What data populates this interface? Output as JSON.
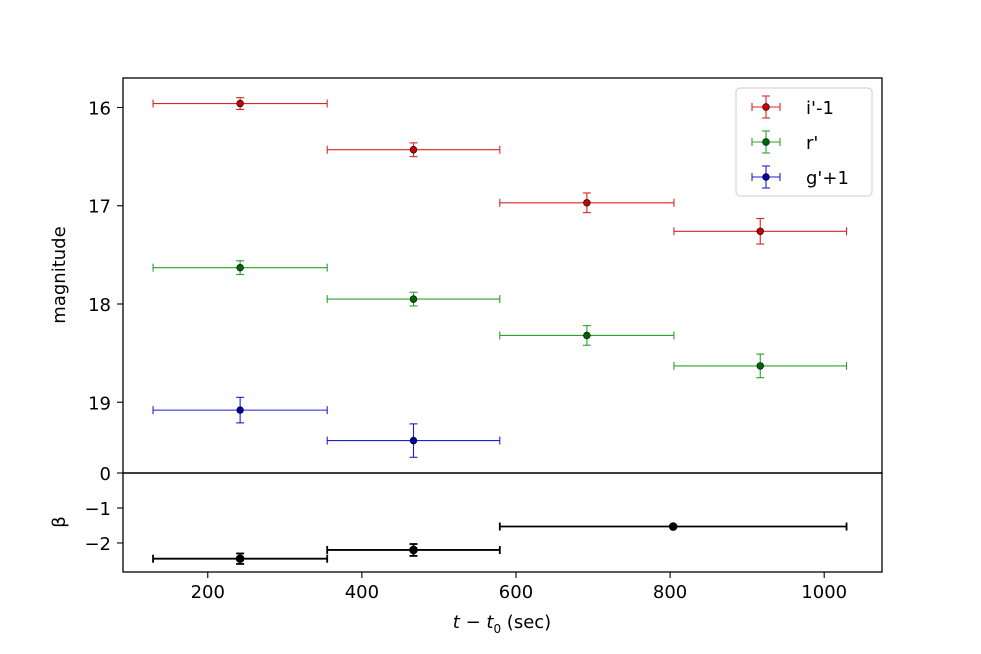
{
  "chart_data": [
    {
      "type": "scatter",
      "panel": "top",
      "ylabel": "magnitude",
      "xlim": [
        90,
        1075
      ],
      "ylim": [
        19.72,
        15.7
      ],
      "y_inverted": true,
      "yticks": [
        {
          "value": 16,
          "label": "16"
        },
        {
          "value": 17,
          "label": "17"
        },
        {
          "value": 18,
          "label": "18"
        },
        {
          "value": 19,
          "label": "19"
        }
      ],
      "legend_position": "top-right",
      "series": [
        {
          "name": "i'-1",
          "color": "#d62728",
          "marker_color": "#cc0000",
          "points": [
            {
              "x": 242,
              "xerr": 113,
              "y": 15.96,
              "yerr": 0.06
            },
            {
              "x": 467,
              "xerr": 112,
              "y": 16.43,
              "yerr": 0.07
            },
            {
              "x": 692,
              "xerr": 113,
              "y": 16.97,
              "yerr": 0.1
            },
            {
              "x": 917,
              "xerr": 112,
              "y": 17.26,
              "yerr": 0.13
            }
          ]
        },
        {
          "name": "r'",
          "color": "#2ca02c",
          "marker_color": "#006600",
          "points": [
            {
              "x": 242,
              "xerr": 113,
              "y": 17.63,
              "yerr": 0.07
            },
            {
              "x": 467,
              "xerr": 112,
              "y": 17.95,
              "yerr": 0.07
            },
            {
              "x": 692,
              "xerr": 113,
              "y": 18.32,
              "yerr": 0.1
            },
            {
              "x": 917,
              "xerr": 112,
              "y": 18.63,
              "yerr": 0.12
            }
          ]
        },
        {
          "name": "g'+1",
          "color": "#1f1fd6",
          "marker_color": "#0000aa",
          "points": [
            {
              "x": 242,
              "xerr": 113,
              "y": 19.08,
              "yerr": 0.13
            },
            {
              "x": 467,
              "xerr": 112,
              "y": 19.39,
              "yerr": 0.17
            }
          ]
        }
      ]
    },
    {
      "type": "scatter",
      "panel": "bottom",
      "ylabel": "β",
      "xlabel": "t − t0 (sec)",
      "xlim": [
        90,
        1075
      ],
      "ylim": [
        -2.83,
        0
      ],
      "yticks": [
        {
          "value": 0,
          "label": "0"
        },
        {
          "value": -1,
          "label": "−1"
        },
        {
          "value": -2,
          "label": "−2"
        }
      ],
      "xticks": [
        {
          "value": 200,
          "label": "200"
        },
        {
          "value": 400,
          "label": "400"
        },
        {
          "value": 600,
          "label": "600"
        },
        {
          "value": 800,
          "label": "800"
        },
        {
          "value": 1000,
          "label": "1000"
        }
      ],
      "series": [
        {
          "color": "#000000",
          "marker_color": "#000000",
          "points": [
            {
              "x": 242,
              "xerr": 113,
              "y": -2.45,
              "yerr": 0.15
            },
            {
              "x": 467,
              "xerr": 112,
              "y": -2.2,
              "yerr": 0.17
            },
            {
              "x": 804,
              "xerr": 225,
              "y": -1.53,
              "yerr": 0.0
            }
          ]
        }
      ]
    }
  ]
}
